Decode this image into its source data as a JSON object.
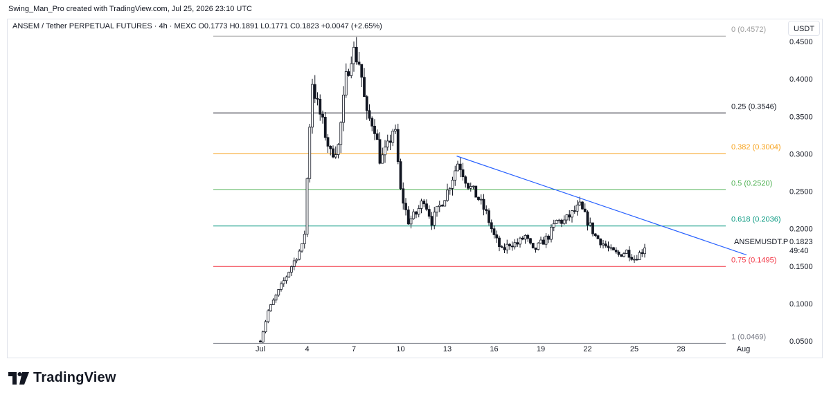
{
  "credit": "Swing_Man_Pro created with TradingView.com, Jul 25, 2026 23:10 UTC",
  "symbol_line": "ANSEM / Tether PERPETUAL FUTURES · 4h · MEXC  O0.1773  H0.1891  L0.1771  C0.1823  +0.0047 (+2.65%)",
  "currency_button": "USDT",
  "brand": {
    "name": "TradingView",
    "logo_icon": "tradingview-logo-icon"
  },
  "chart_data": {
    "type": "candlestick",
    "symbol": "ANSEMUSDT.P",
    "interval": "4h",
    "exchange": "MEXC",
    "ohlc_last": {
      "open": 0.1773,
      "high": 0.1891,
      "low": 0.1771,
      "close": 0.1823,
      "change": 0.0047,
      "change_pct": 2.65
    },
    "last_price_label": "0.1823",
    "countdown_label": "49:40",
    "x_ticks": [
      "Jul",
      "4",
      "7",
      "10",
      "13",
      "16",
      "19",
      "22",
      "25",
      "28",
      "Aug"
    ],
    "x_range_days": [
      1,
      33
    ],
    "y_ticks": [
      "0.4500",
      "0.4000",
      "0.3500",
      "0.3000",
      "0.2500",
      "0.2000",
      "0.1500",
      "0.1000",
      "0.0500"
    ],
    "ylim": [
      0.0469,
      0.4572
    ],
    "colors": {
      "up": "#ffffff",
      "down": "#131722",
      "wick": "#131722",
      "trendline": "#2962ff",
      "text": "#131722",
      "grid": "#e0e3eb"
    },
    "fib_levels": [
      {
        "label": "0 (0.4572)",
        "value": 0.4572,
        "color": "#9e9e9e"
      },
      {
        "label": "0.25 (0.3546)",
        "value": 0.3546,
        "color": "#131722"
      },
      {
        "label": "0.382 (0.3004)",
        "value": 0.3004,
        "color": "#f7a21b"
      },
      {
        "label": "0.5 (0.2520)",
        "value": 0.252,
        "color": "#4caf50"
      },
      {
        "label": "0.618 (0.2036)",
        "value": 0.2036,
        "color": "#089981"
      },
      {
        "label": "0.75 (0.1495)",
        "value": 0.1495,
        "color": "#f23645"
      },
      {
        "label": "1 (0.0469)",
        "value": 0.0469,
        "color": "#787b86"
      }
    ],
    "trendline": {
      "from": {
        "day": 13.6,
        "price": 0.297
      },
      "to": {
        "day": 32.2,
        "price": 0.165
      }
    },
    "price_path": [
      [
        1.0,
        0.05
      ],
      [
        1.5,
        0.09
      ],
      [
        2.0,
        0.11
      ],
      [
        2.5,
        0.13
      ],
      [
        3.0,
        0.15
      ],
      [
        3.5,
        0.17
      ],
      [
        3.8,
        0.18
      ],
      [
        4.1,
        0.31
      ],
      [
        4.3,
        0.4
      ],
      [
        4.6,
        0.37
      ],
      [
        5.0,
        0.34
      ],
      [
        5.5,
        0.3
      ],
      [
        6.0,
        0.31
      ],
      [
        6.5,
        0.4
      ],
      [
        6.9,
        0.44
      ],
      [
        7.4,
        0.42
      ],
      [
        7.8,
        0.35
      ],
      [
        8.3,
        0.34
      ],
      [
        8.7,
        0.29
      ],
      [
        9.2,
        0.31
      ],
      [
        9.6,
        0.34
      ],
      [
        10.0,
        0.25
      ],
      [
        10.5,
        0.21
      ],
      [
        11.0,
        0.22
      ],
      [
        11.5,
        0.24
      ],
      [
        12.0,
        0.21
      ],
      [
        12.5,
        0.23
      ],
      [
        13.0,
        0.25
      ],
      [
        13.7,
        0.29
      ],
      [
        14.3,
        0.26
      ],
      [
        15.0,
        0.24
      ],
      [
        15.5,
        0.22
      ],
      [
        16.0,
        0.19
      ],
      [
        16.5,
        0.17
      ],
      [
        17.0,
        0.18
      ],
      [
        17.5,
        0.18
      ],
      [
        18.0,
        0.19
      ],
      [
        18.5,
        0.17
      ],
      [
        19.0,
        0.18
      ],
      [
        19.5,
        0.19
      ],
      [
        20.0,
        0.21
      ],
      [
        20.5,
        0.21
      ],
      [
        21.0,
        0.22
      ],
      [
        21.5,
        0.23
      ],
      [
        22.0,
        0.21
      ],
      [
        22.5,
        0.19
      ],
      [
        23.0,
        0.18
      ],
      [
        23.5,
        0.17
      ],
      [
        24.0,
        0.165
      ],
      [
        24.5,
        0.17
      ],
      [
        25.0,
        0.16
      ],
      [
        25.5,
        0.17
      ],
      [
        25.8,
        0.1823
      ]
    ]
  }
}
